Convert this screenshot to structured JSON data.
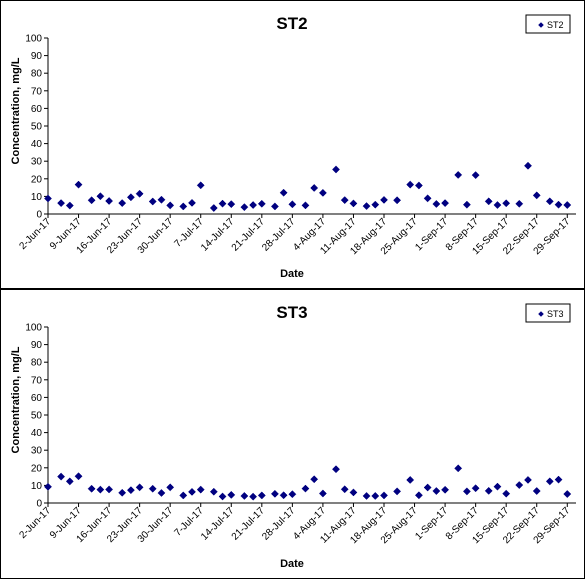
{
  "chart_data": [
    {
      "type": "scatter",
      "title": "ST2",
      "xlabel": "Date",
      "ylabel": "Concentration, mg/L",
      "ylim": [
        0,
        100
      ],
      "ytick_step": 10,
      "xlim": [
        "2017-06-02",
        "2017-10-01"
      ],
      "x_tick_labels": [
        "2-Jun-17",
        "9-Jun-17",
        "16-Jun-17",
        "23-Jun-17",
        "30-Jun-17",
        "7-Jul-17",
        "14-Jul-17",
        "21-Jul-17",
        "28-Jul-17",
        "4-Aug-17",
        "11-Aug-17",
        "18-Aug-17",
        "25-Aug-17",
        "1-Sep-17",
        "8-Sep-17",
        "15-Sep-17",
        "22-Sep-17",
        "29-Sep-17"
      ],
      "legend_position": "top-right",
      "marker": "diamond",
      "color": "#000080",
      "series": [
        {
          "name": "ST2",
          "x": [
            "2017-06-02",
            "2017-06-05",
            "2017-06-07",
            "2017-06-09",
            "2017-06-12",
            "2017-06-14",
            "2017-06-16",
            "2017-06-19",
            "2017-06-21",
            "2017-06-23",
            "2017-06-26",
            "2017-06-28",
            "2017-06-30",
            "2017-07-03",
            "2017-07-05",
            "2017-07-07",
            "2017-07-10",
            "2017-07-12",
            "2017-07-14",
            "2017-07-17",
            "2017-07-19",
            "2017-07-21",
            "2017-07-24",
            "2017-07-26",
            "2017-07-28",
            "2017-07-31",
            "2017-08-02",
            "2017-08-04",
            "2017-08-07",
            "2017-08-09",
            "2017-08-11",
            "2017-08-14",
            "2017-08-16",
            "2017-08-18",
            "2017-08-21",
            "2017-08-24",
            "2017-08-26",
            "2017-08-28",
            "2017-08-30",
            "2017-09-01",
            "2017-09-04",
            "2017-09-06",
            "2017-09-08",
            "2017-09-11",
            "2017-09-13",
            "2017-09-15",
            "2017-09-18",
            "2017-09-20",
            "2017-09-22",
            "2017-09-25",
            "2017-09-27",
            "2017-09-29"
          ],
          "y": [
            8.8,
            6.2,
            4.8,
            16.7,
            7.8,
            10.1,
            7.4,
            6.2,
            9.5,
            11.5,
            7.1,
            8.1,
            4.9,
            4.3,
            6.3,
            16.3,
            3.4,
            5.9,
            5.6,
            3.9,
            5.1,
            5.8,
            4.3,
            12.1,
            5.5,
            4.9,
            14.8,
            12.0,
            25.3,
            7.9,
            6.0,
            4.5,
            5.3,
            8.0,
            7.8,
            16.7,
            16.2,
            8.9,
            5.7,
            6.2,
            22.2,
            5.3,
            22.1,
            7.2,
            5.1,
            6.1,
            5.8,
            27.4,
            10.6,
            7.2,
            5.3,
            5.1
          ]
        }
      ]
    },
    {
      "type": "scatter",
      "title": "ST3",
      "xlabel": "Date",
      "ylabel": "Concentration, mg/L",
      "ylim": [
        0,
        100
      ],
      "ytick_step": 10,
      "xlim": [
        "2017-06-02",
        "2017-10-01"
      ],
      "x_tick_labels": [
        "2-Jun-17",
        "9-Jun-17",
        "16-Jun-17",
        "23-Jun-17",
        "30-Jun-17",
        "7-Jul-17",
        "14-Jul-17",
        "21-Jul-17",
        "28-Jul-17",
        "4-Aug-17",
        "11-Aug-17",
        "18-Aug-17",
        "25-Aug-17",
        "1-Sep-17",
        "8-Sep-17",
        "15-Sep-17",
        "22-Sep-17",
        "29-Sep-17"
      ],
      "legend_position": "top-right",
      "marker": "diamond",
      "color": "#000080",
      "series": [
        {
          "name": "ST3",
          "x": [
            "2017-06-02",
            "2017-06-05",
            "2017-06-07",
            "2017-06-09",
            "2017-06-12",
            "2017-06-14",
            "2017-06-16",
            "2017-06-19",
            "2017-06-21",
            "2017-06-23",
            "2017-06-26",
            "2017-06-28",
            "2017-06-30",
            "2017-07-03",
            "2017-07-05",
            "2017-07-07",
            "2017-07-10",
            "2017-07-12",
            "2017-07-14",
            "2017-07-17",
            "2017-07-19",
            "2017-07-21",
            "2017-07-24",
            "2017-07-26",
            "2017-07-28",
            "2017-07-31",
            "2017-08-02",
            "2017-08-04",
            "2017-08-07",
            "2017-08-09",
            "2017-08-11",
            "2017-08-14",
            "2017-08-16",
            "2017-08-18",
            "2017-08-21",
            "2017-08-24",
            "2017-08-26",
            "2017-08-28",
            "2017-08-30",
            "2017-09-01",
            "2017-09-04",
            "2017-09-06",
            "2017-09-08",
            "2017-09-11",
            "2017-09-13",
            "2017-09-15",
            "2017-09-18",
            "2017-09-20",
            "2017-09-22",
            "2017-09-25",
            "2017-09-27",
            "2017-09-29"
          ],
          "y": [
            9.2,
            15.0,
            12.3,
            15.2,
            8.1,
            7.6,
            7.7,
            5.8,
            7.3,
            8.9,
            8.1,
            5.7,
            8.9,
            4.3,
            6.3,
            7.6,
            6.4,
            3.7,
            4.6,
            4.0,
            3.6,
            4.3,
            5.2,
            4.4,
            5.0,
            8.2,
            13.5,
            5.4,
            19.2,
            7.8,
            6.0,
            4.0,
            4.0,
            4.3,
            6.6,
            13.1,
            4.4,
            8.8,
            6.8,
            7.5,
            19.7,
            6.6,
            8.4,
            6.9,
            9.3,
            5.3,
            10.2,
            13.1,
            6.8,
            12.3,
            13.3,
            5.1
          ]
        }
      ]
    }
  ]
}
